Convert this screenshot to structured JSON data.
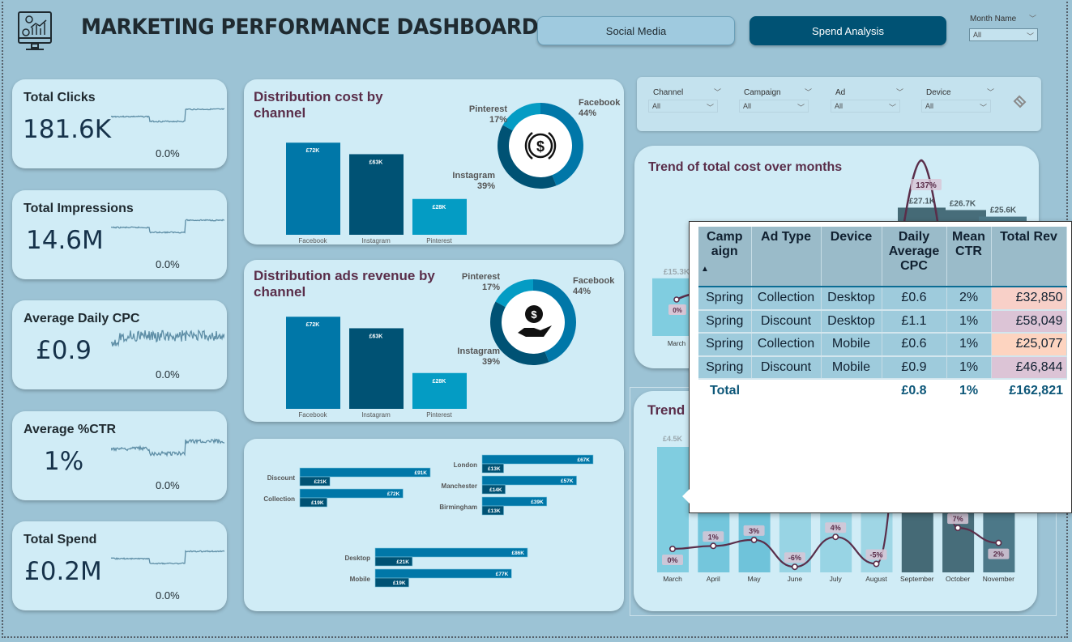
{
  "header": {
    "title": "MARKETING PERFORMANCE DASHBOARD",
    "logo_icon": "monitor-analytics-icon",
    "nav": [
      {
        "label": "Social Media",
        "active": false
      },
      {
        "label": "Spend Analysis",
        "active": true
      }
    ],
    "month_filter": {
      "label": "Month Name",
      "value": "All"
    }
  },
  "kpis": [
    {
      "label": "Total Clicks",
      "value": "181.6K",
      "change": "0.0%"
    },
    {
      "label": "Total Impressions",
      "value": "14.6M",
      "change": "0.0%"
    },
    {
      "label": "Average Daily CPC",
      "value": "£0.9",
      "change": "0.0%"
    },
    {
      "label": "Average %CTR",
      "value": "1%",
      "change": "0.0%"
    },
    {
      "label": "Total Spend",
      "value": "£0.2M",
      "change": "0.0%"
    }
  ],
  "filters": [
    {
      "label": "Channel",
      "value": "All"
    },
    {
      "label": "Campaign",
      "value": "All"
    },
    {
      "label": "Ad",
      "value": "All"
    },
    {
      "label": "Device",
      "value": "All"
    }
  ],
  "colors": {
    "facebook": "#0077a8",
    "instagram": "#005274",
    "pinterest": "#049cc4",
    "title": "#5a2e4a",
    "line": "#5a2e4a"
  },
  "chart_data": [
    {
      "type": "bar",
      "title": "Distribution cost by channel",
      "categories": [
        "Facebook",
        "Instagram",
        "Pinterest"
      ],
      "values": [
        72,
        63,
        28
      ],
      "labels": [
        "£72K",
        "£63K",
        "£28K"
      ],
      "unit": "£K"
    },
    {
      "type": "pie",
      "title": "Distribution cost by channel",
      "center_icon": "dollar-coin-icon",
      "categories": [
        "Facebook",
        "Instagram",
        "Pinterest"
      ],
      "values": [
        44,
        39,
        17
      ],
      "labels": [
        "44%",
        "39%",
        "17%"
      ]
    },
    {
      "type": "bar",
      "title": "Distribution ads revenue by channel",
      "categories": [
        "Facebook",
        "Instagram",
        "Pinterest"
      ],
      "values": [
        72,
        63,
        28
      ],
      "labels": [
        "£72K",
        "£63K",
        "£28K"
      ],
      "unit": "£K"
    },
    {
      "type": "pie",
      "title": "Distribution ads revenue by channel",
      "center_icon": "hand-money-icon",
      "categories": [
        "Facebook",
        "Instagram",
        "Pinterest"
      ],
      "values": [
        44,
        39,
        17
      ],
      "labels": [
        "44%",
        "39%",
        "17%"
      ]
    },
    {
      "type": "bar",
      "orientation": "horizontal",
      "categories": [
        "Discount",
        "Collection"
      ],
      "series": [
        {
          "values": [
            91,
            72
          ],
          "labels": [
            "£91K",
            "£72K"
          ]
        },
        {
          "values": [
            21,
            19
          ],
          "labels": [
            "£21K",
            "£19K"
          ]
        }
      ]
    },
    {
      "type": "bar",
      "orientation": "horizontal",
      "categories": [
        "London",
        "Manchester",
        "Birmingham"
      ],
      "series": [
        {
          "values": [
            67,
            57,
            39
          ],
          "labels": [
            "£67K",
            "£57K",
            "£39K"
          ]
        },
        {
          "values": [
            13,
            14,
            13
          ],
          "labels": [
            "£13K",
            "£14K",
            "£13K"
          ]
        }
      ]
    },
    {
      "type": "bar",
      "orientation": "horizontal",
      "categories": [
        "Desktop",
        "Mobile"
      ],
      "series": [
        {
          "values": [
            86,
            77
          ],
          "labels": [
            "£86K",
            "£77K"
          ]
        },
        {
          "values": [
            21,
            19
          ],
          "labels": [
            "£21K",
            "£19K"
          ]
        }
      ]
    },
    {
      "type": "bar",
      "title": "Trend of total cost over months",
      "categories": [
        "March",
        "September",
        "October",
        "November"
      ],
      "values": [
        15.3,
        27.1,
        26.7,
        25.6
      ],
      "labels": [
        "£15.3K",
        "£27.1K",
        "£26.7K",
        "£25.6K"
      ],
      "line_labels": [
        "0%",
        "137%"
      ]
    },
    {
      "type": "bar",
      "title": "Trend",
      "categories": [
        "March",
        "April",
        "May",
        "June",
        "July",
        "August",
        "September",
        "October",
        "November"
      ],
      "bar_label": "£4.5K",
      "line_values": [
        0,
        1,
        3,
        -6,
        4,
        -5,
        null,
        7,
        2
      ],
      "line_labels": [
        "0%",
        "1%",
        "3%",
        "-6%",
        "4%",
        "-5%",
        "",
        "7%",
        "2%"
      ]
    }
  ],
  "table": {
    "columns": [
      "Camp aign",
      "Ad Type",
      "Device",
      "Daily Average CPC",
      "Mean CTR",
      "Total Rev"
    ],
    "rows": [
      [
        "Spring",
        "Collection",
        "Desktop",
        "£0.6",
        "2%",
        "£32,850"
      ],
      [
        "Spring",
        "Discount",
        "Desktop",
        "£1.1",
        "1%",
        "£58,049"
      ],
      [
        "Spring",
        "Collection",
        "Mobile",
        "£0.6",
        "1%",
        "£25,077"
      ],
      [
        "Spring",
        "Discount",
        "Mobile",
        "£0.9",
        "1%",
        "£46,844"
      ]
    ],
    "rev_colors": [
      "#f8d0c8",
      "#dcc4d6",
      "#fdd4c0",
      "#dcc4d6"
    ],
    "total": {
      "label": "Total",
      "cpc": "£0.8",
      "ctr": "1%",
      "rev": "£162,821"
    }
  }
}
